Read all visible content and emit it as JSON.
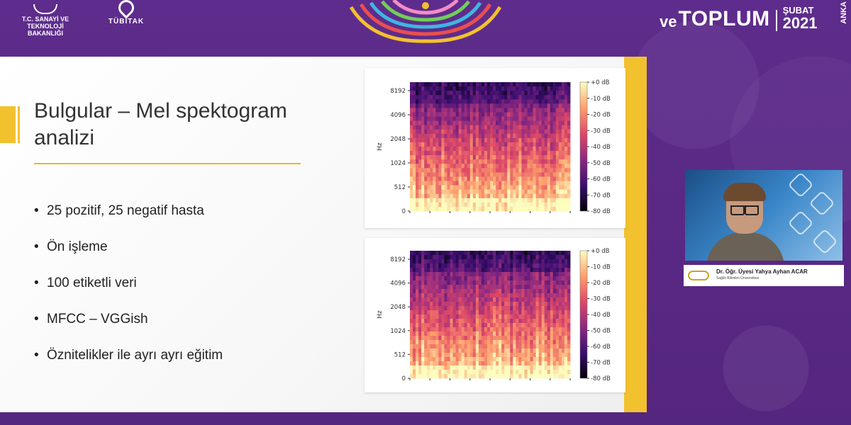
{
  "header": {
    "ministry_name": "T.C. SANAYİ VE TEKNOLOJİ BAKANLIĞI",
    "tubitak_label": "TÜBİTAK",
    "event_ve": "ve",
    "event_toplum": "TOPLUM",
    "event_month": "ŞUBAT",
    "event_year": "2021",
    "event_city": "ANKA"
  },
  "slide": {
    "title": "Bulgular – Mel spektogram analizi",
    "bullets": [
      "25 pozitif, 25 negatif hasta",
      "Ön işleme",
      "100 etiketli veri",
      "MFCC – VGGish",
      "Öznitelikler ile ayrı ayrı eğitim"
    ]
  },
  "spectrogram": {
    "ylabel": "Hz",
    "yticks": [
      "8192",
      "4096",
      "2048",
      "1024",
      "512",
      "0"
    ],
    "colorbar_ticks": [
      "+0 dB",
      "-10 dB",
      "-20 dB",
      "-30 dB",
      "-40 dB",
      "-50 dB",
      "-60 dB",
      "-70 dB",
      "-80 dB"
    ],
    "colors": {
      "low": "#000004",
      "mid_low": "#3b0f70",
      "mid": "#8c2981",
      "mid_high": "#de4968",
      "high": "#fe9f6d",
      "peak": "#fcfdbf"
    }
  },
  "speaker": {
    "name": "Dr. Öğr. Üyesi Yahya Ayhan ACAR",
    "affiliation": "Sağlık Bilimleri Üniversitesi"
  }
}
